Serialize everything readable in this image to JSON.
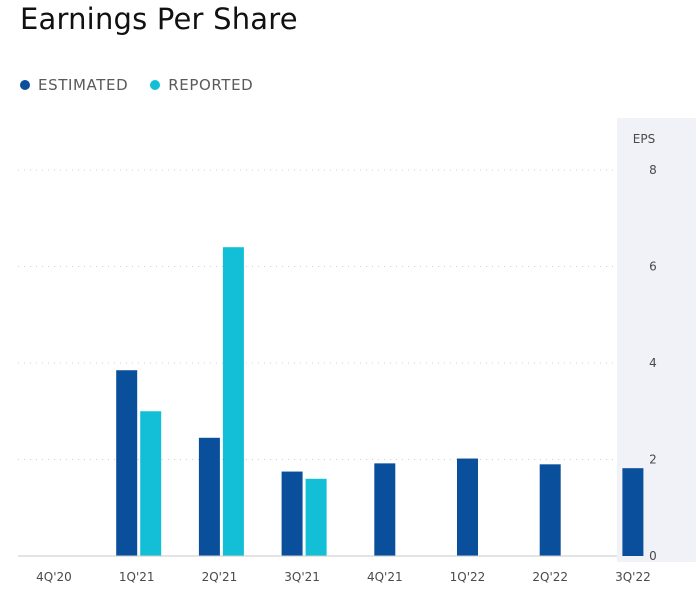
{
  "title": "Earnings Per Share",
  "legend": [
    {
      "label": "ESTIMATED",
      "color": "#0a4f9c"
    },
    {
      "label": "REPORTED",
      "color": "#13bfd6"
    }
  ],
  "chart_data": {
    "type": "bar",
    "title": "Earnings Per Share",
    "ylabel": "EPS",
    "categories": [
      "4Q'20",
      "1Q'21",
      "2Q'21",
      "3Q'21",
      "4Q'21",
      "1Q'22",
      "2Q'22",
      "3Q'22"
    ],
    "series": [
      {
        "name": "ESTIMATED",
        "color": "#0a4f9c",
        "values": [
          null,
          3.85,
          2.45,
          1.75,
          1.92,
          2.02,
          1.9,
          1.82
        ]
      },
      {
        "name": "REPORTED",
        "color": "#13bfd6",
        "values": [
          null,
          3.0,
          6.4,
          1.6,
          null,
          null,
          null,
          null
        ]
      }
    ],
    "ylim": [
      0,
      8
    ],
    "yticks": [
      0,
      2,
      4,
      6,
      8
    ],
    "grid": true,
    "legend_position": "top-left"
  }
}
